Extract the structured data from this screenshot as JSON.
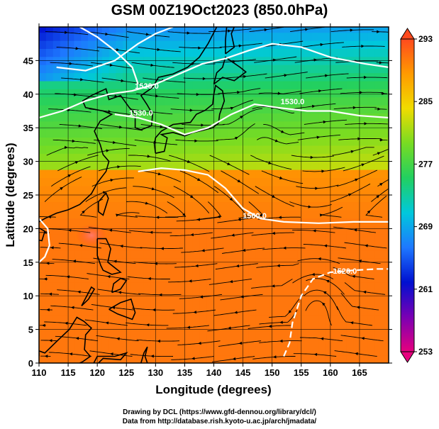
{
  "title": "GSM 00Z19Oct2023 (850.0hPa)",
  "x_axis": {
    "label": "Longitude (degrees)",
    "ticks": [
      "110",
      "115",
      "120",
      "125",
      "130",
      "135",
      "140",
      "145",
      "150",
      "155",
      "160",
      "165"
    ],
    "range": [
      110,
      170
    ]
  },
  "y_axis": {
    "label": "Latitude  (degrees)",
    "ticks": [
      "0",
      "5",
      "10",
      "15",
      "20",
      "25",
      "30",
      "35",
      "40",
      "45"
    ],
    "range": [
      0,
      50
    ]
  },
  "colorbar": {
    "ticks": [
      "293",
      "285",
      "277",
      "269",
      "261",
      "253"
    ],
    "range": [
      253,
      293
    ],
    "colors": [
      "#e6007e",
      "#7a00b4",
      "#0010d0",
      "#1e78ff",
      "#00c8dc",
      "#22d060",
      "#78dc22",
      "#f0dc00",
      "#ff9a00",
      "#ff4a1e"
    ]
  },
  "contour_labels": [
    {
      "text": "1520.0",
      "lon": 128.5,
      "lat": 40.8
    },
    {
      "text": "1530.0",
      "lon": 127.5,
      "lat": 36.8
    },
    {
      "text": "1530.0",
      "lon": 153.5,
      "lat": 38.5
    },
    {
      "text": "1560.0",
      "lon": 147.0,
      "lat": 21.5
    },
    {
      "text": "1520.0",
      "lon": 162.5,
      "lat": 13.3
    }
  ],
  "credit": {
    "line1": "Drawing by DCL (https://www.gfd-dennou.org/library/dcl/)",
    "line2": "Data from http://database.rish.kyoto-u.ac.jp/arch/jmadata/"
  }
}
